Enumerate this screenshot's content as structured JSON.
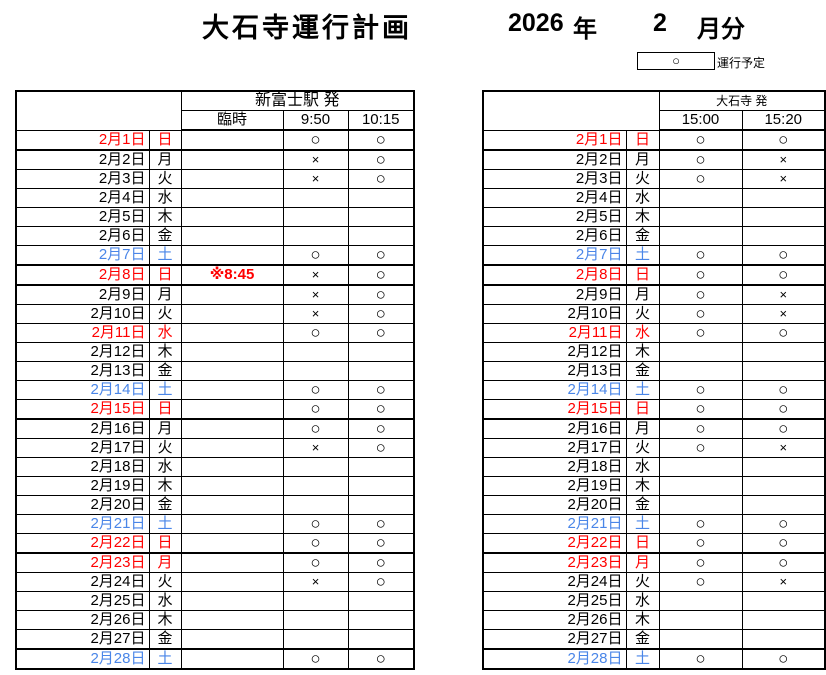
{
  "title": "大石寺運行計画",
  "year": "2026",
  "year_label": "年",
  "month": "2",
  "month_label": "月分",
  "legend": {
    "symbol": "○",
    "label": "運行予定"
  },
  "symbols": {
    "run": "○",
    "no_run": "×"
  },
  "colors": {
    "holiday_red": "#ff0000",
    "saturday_blue": "#4a86e8",
    "border": "#000000"
  },
  "days": [
    {
      "date": "2月1日",
      "dow": "日",
      "color": "red",
      "thick_bottom": true
    },
    {
      "date": "2月2日",
      "dow": "月",
      "color": "",
      "thick_bottom": false
    },
    {
      "date": "2月3日",
      "dow": "火",
      "color": "",
      "thick_bottom": false
    },
    {
      "date": "2月4日",
      "dow": "水",
      "color": "",
      "thick_bottom": false
    },
    {
      "date": "2月5日",
      "dow": "木",
      "color": "",
      "thick_bottom": false
    },
    {
      "date": "2月6日",
      "dow": "金",
      "color": "",
      "thick_bottom": false
    },
    {
      "date": "2月7日",
      "dow": "土",
      "color": "blue",
      "thick_bottom": true
    },
    {
      "date": "2月8日",
      "dow": "日",
      "color": "red",
      "thick_bottom": true
    },
    {
      "date": "2月9日",
      "dow": "月",
      "color": "",
      "thick_bottom": false
    },
    {
      "date": "2月10日",
      "dow": "火",
      "color": "",
      "thick_bottom": false
    },
    {
      "date": "2月11日",
      "dow": "水",
      "color": "red",
      "thick_bottom": false
    },
    {
      "date": "2月12日",
      "dow": "木",
      "color": "",
      "thick_bottom": false
    },
    {
      "date": "2月13日",
      "dow": "金",
      "color": "",
      "thick_bottom": false
    },
    {
      "date": "2月14日",
      "dow": "土",
      "color": "blue",
      "thick_bottom": false
    },
    {
      "date": "2月15日",
      "dow": "日",
      "color": "red",
      "thick_bottom": true
    },
    {
      "date": "2月16日",
      "dow": "月",
      "color": "",
      "thick_bottom": false
    },
    {
      "date": "2月17日",
      "dow": "火",
      "color": "",
      "thick_bottom": false
    },
    {
      "date": "2月18日",
      "dow": "水",
      "color": "",
      "thick_bottom": false
    },
    {
      "date": "2月19日",
      "dow": "木",
      "color": "",
      "thick_bottom": false
    },
    {
      "date": "2月20日",
      "dow": "金",
      "color": "",
      "thick_bottom": false
    },
    {
      "date": "2月21日",
      "dow": "土",
      "color": "blue",
      "thick_bottom": false
    },
    {
      "date": "2月22日",
      "dow": "日",
      "color": "red",
      "thick_bottom": true
    },
    {
      "date": "2月23日",
      "dow": "月",
      "color": "red",
      "thick_bottom": false
    },
    {
      "date": "2月24日",
      "dow": "火",
      "color": "",
      "thick_bottom": false
    },
    {
      "date": "2月25日",
      "dow": "水",
      "color": "",
      "thick_bottom": false
    },
    {
      "date": "2月26日",
      "dow": "木",
      "color": "",
      "thick_bottom": false
    },
    {
      "date": "2月27日",
      "dow": "金",
      "color": "",
      "thick_bottom": true
    },
    {
      "date": "2月28日",
      "dow": "土",
      "color": "blue",
      "thick_bottom": false
    }
  ],
  "tables": [
    {
      "id": "shinfuji",
      "station": "新富士駅 発",
      "columns": [
        "臨時",
        "9:50",
        "10:15"
      ],
      "marks": [
        [
          "",
          "○",
          "○"
        ],
        [
          "",
          "×",
          "○"
        ],
        [
          "",
          "×",
          "○"
        ],
        [
          "",
          "",
          ""
        ],
        [
          "",
          "",
          ""
        ],
        [
          "",
          "",
          ""
        ],
        [
          "",
          "○",
          "○"
        ],
        [
          "※8:45",
          "×",
          "○"
        ],
        [
          "",
          "×",
          "○"
        ],
        [
          "",
          "×",
          "○"
        ],
        [
          "",
          "○",
          "○"
        ],
        [
          "",
          "",
          ""
        ],
        [
          "",
          "",
          ""
        ],
        [
          "",
          "○",
          "○"
        ],
        [
          "",
          "○",
          "○"
        ],
        [
          "",
          "○",
          "○"
        ],
        [
          "",
          "×",
          "○"
        ],
        [
          "",
          "",
          ""
        ],
        [
          "",
          "",
          ""
        ],
        [
          "",
          "",
          ""
        ],
        [
          "",
          "○",
          "○"
        ],
        [
          "",
          "○",
          "○"
        ],
        [
          "",
          "○",
          "○"
        ],
        [
          "",
          "×",
          "○"
        ],
        [
          "",
          "",
          ""
        ],
        [
          "",
          "",
          ""
        ],
        [
          "",
          "",
          ""
        ],
        [
          "",
          "○",
          "○"
        ]
      ]
    },
    {
      "id": "taisekiji",
      "station": "大石寺 発",
      "columns": [
        "15:00",
        "15:20"
      ],
      "marks": [
        [
          "○",
          "○"
        ],
        [
          "○",
          "×"
        ],
        [
          "○",
          "×"
        ],
        [
          "",
          ""
        ],
        [
          "",
          ""
        ],
        [
          "",
          ""
        ],
        [
          "○",
          "○"
        ],
        [
          "○",
          "○"
        ],
        [
          "○",
          "×"
        ],
        [
          "○",
          "×"
        ],
        [
          "○",
          "○"
        ],
        [
          "",
          ""
        ],
        [
          "",
          ""
        ],
        [
          "○",
          "○"
        ],
        [
          "○",
          "○"
        ],
        [
          "○",
          "○"
        ],
        [
          "○",
          "×"
        ],
        [
          "",
          ""
        ],
        [
          "",
          ""
        ],
        [
          "",
          ""
        ],
        [
          "○",
          "○"
        ],
        [
          "○",
          "○"
        ],
        [
          "○",
          "○"
        ],
        [
          "○",
          "×"
        ],
        [
          "",
          ""
        ],
        [
          "",
          ""
        ],
        [
          "",
          ""
        ],
        [
          "○",
          "○"
        ]
      ]
    }
  ]
}
